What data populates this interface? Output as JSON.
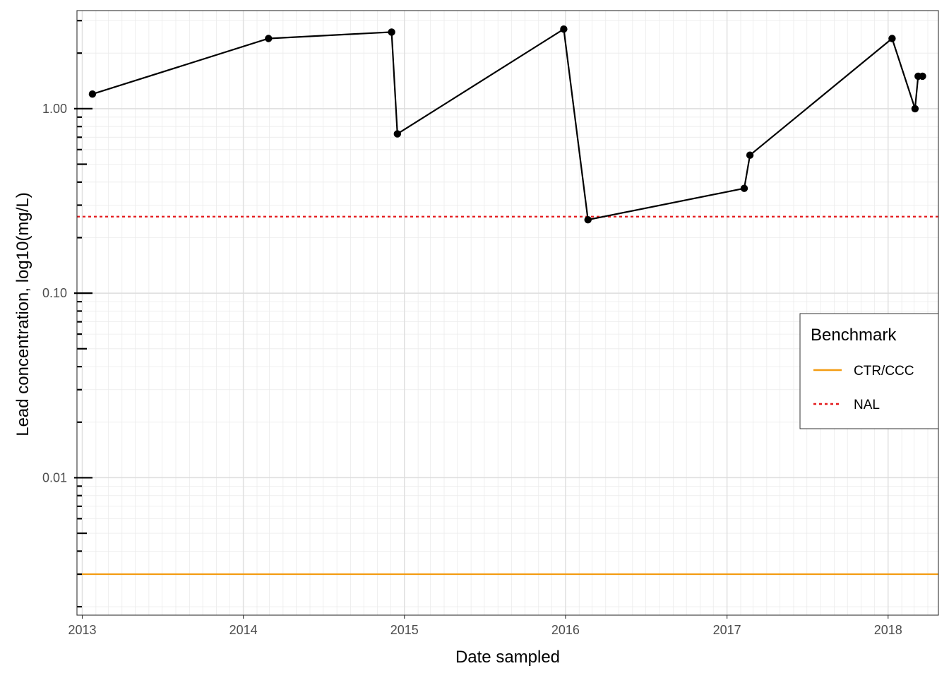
{
  "chart_data": {
    "type": "line",
    "xlabel": "Date sampled",
    "ylabel": "Lead concentration, log10(mg/L)",
    "x_tick_labels": [
      "2013",
      "2014",
      "2015",
      "2016",
      "2017",
      "2018"
    ],
    "y_tick_labels": [
      "0.01",
      "0.10",
      "1.00"
    ],
    "y_scale": "log10",
    "ylim": [
      0.0018,
      3.4
    ],
    "xlim": [
      "2012-12-20",
      "2018-04-25"
    ],
    "grid": true,
    "series": [
      {
        "type": "line+points",
        "color": "#000000",
        "x": [
          "2013-01-24",
          "2014-02-27",
          "2014-12-03",
          "2014-12-16",
          "2015-12-28",
          "2016-02-21",
          "2017-02-09",
          "2017-02-22",
          "2018-01-10",
          "2018-03-03",
          "2018-03-10",
          "2018-03-20"
        ],
        "y": [
          1.2,
          2.4,
          2.6,
          0.73,
          2.7,
          0.25,
          0.37,
          0.56,
          2.4,
          1.0,
          1.5,
          1.5
        ]
      }
    ],
    "reference_lines": [
      {
        "name": "CTR/CCC",
        "y": 0.003,
        "color": "#f39c12",
        "style": "solid"
      },
      {
        "name": "NAL",
        "y": 0.26,
        "color": "#e41a1c",
        "style": "dotted"
      }
    ],
    "legend": {
      "title": "Benchmark",
      "placement": "right",
      "entries": [
        {
          "label": "CTR/CCC",
          "color": "#f39c12",
          "style": "solid"
        },
        {
          "label": "NAL",
          "color": "#e41a1c",
          "style": "dotted"
        }
      ]
    }
  }
}
